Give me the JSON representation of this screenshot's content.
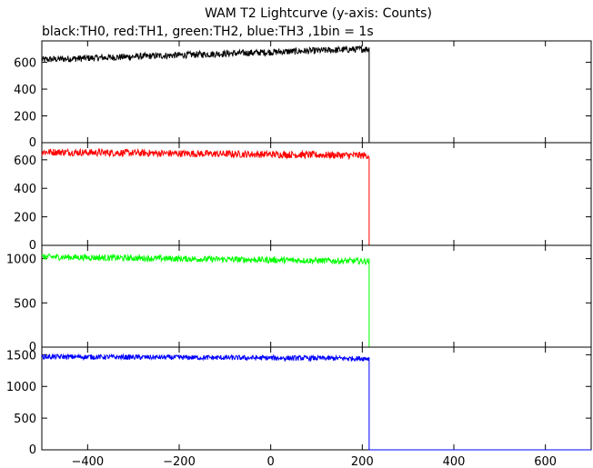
{
  "title": "WAM T2 Lightcurve (y-axis: Counts)",
  "subtitle": "black:TH0, red:TH1, green:TH2, blue:TH3 ,1bin = 1s",
  "chart_data": [
    {
      "type": "line",
      "panel": "TH0",
      "color": "#000000",
      "xlim": [
        -500,
        700
      ],
      "ylim": [
        0,
        760
      ],
      "yticks": [
        0,
        200,
        400,
        600
      ],
      "xticks": [
        -400,
        -200,
        0,
        200,
        400,
        600
      ],
      "grid": false,
      "series": [
        {
          "x": [
            -500,
            215
          ],
          "y": [
            620,
            700
          ],
          "noise": 25,
          "drop_at": 215,
          "after": 0
        }
      ]
    },
    {
      "type": "line",
      "panel": "TH1",
      "color": "#ff0000",
      "xlim": [
        -500,
        700
      ],
      "ylim": [
        0,
        720
      ],
      "yticks": [
        0,
        200,
        400,
        600
      ],
      "xticks": [
        -400,
        -200,
        0,
        200,
        400,
        600
      ],
      "grid": false,
      "series": [
        {
          "x": [
            -500,
            215
          ],
          "y": [
            655,
            630
          ],
          "noise": 25,
          "drop_at": 215,
          "after": 0
        }
      ]
    },
    {
      "type": "line",
      "panel": "TH2",
      "color": "#00ff00",
      "xlim": [
        -500,
        700
      ],
      "ylim": [
        0,
        1150
      ],
      "yticks": [
        0,
        500,
        1000
      ],
      "xticks": [
        -400,
        -200,
        0,
        200,
        400,
        600
      ],
      "grid": false,
      "series": [
        {
          "x": [
            -500,
            215
          ],
          "y": [
            1020,
            970
          ],
          "noise": 35,
          "drop_at": 215,
          "after": 0
        }
      ]
    },
    {
      "type": "line",
      "panel": "TH3",
      "color": "#0000ff",
      "xlim": [
        -500,
        700
      ],
      "ylim": [
        0,
        1620
      ],
      "yticks": [
        0,
        500,
        1000,
        1500
      ],
      "xticks": [
        -400,
        -200,
        0,
        200,
        400,
        600
      ],
      "grid": false,
      "series": [
        {
          "x": [
            -500,
            215
          ],
          "y": [
            1470,
            1440
          ],
          "noise": 40,
          "drop_at": 215,
          "after": 0
        }
      ]
    }
  ]
}
